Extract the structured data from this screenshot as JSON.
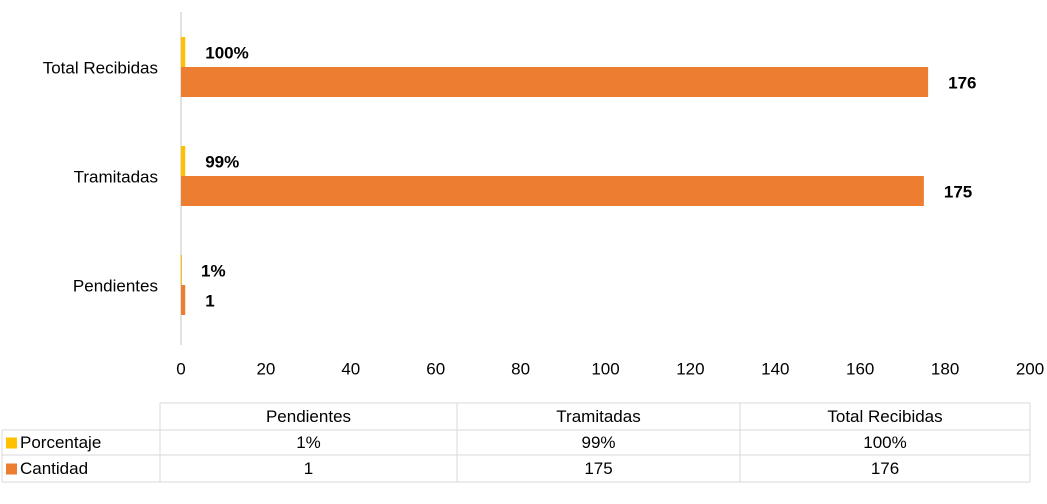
{
  "chart_data": {
    "type": "bar",
    "orientation": "horizontal",
    "categories": [
      "Pendientes",
      "Tramitadas",
      "Total Recibidas"
    ],
    "series": [
      {
        "name": "Porcentaje",
        "color": "#ffc000",
        "values": [
          0.01,
          0.99,
          1
        ],
        "value_labels": [
          "1%",
          "99%",
          "100%"
        ]
      },
      {
        "name": "Cantidad",
        "color": "#ed7d31",
        "values": [
          1,
          175,
          176
        ]
      }
    ],
    "xlim": [
      0,
      200
    ],
    "xticks": [
      0,
      20,
      40,
      60,
      80,
      100,
      120,
      140,
      160,
      180,
      200
    ],
    "data_table": true
  }
}
